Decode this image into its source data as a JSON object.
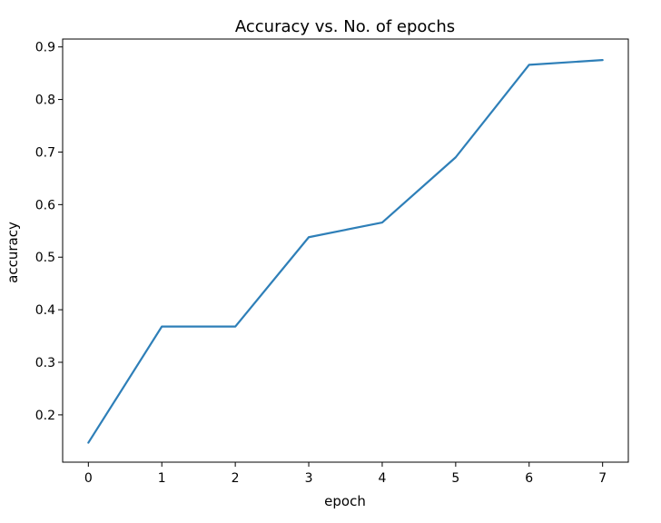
{
  "chart_data": {
    "type": "line",
    "title": "Accuracy vs. No. of epochs",
    "xlabel": "epoch",
    "ylabel": "accuracy",
    "x": [
      0,
      1,
      2,
      3,
      4,
      5,
      6,
      7
    ],
    "series": [
      {
        "values": [
          0.147,
          0.368,
          0.368,
          0.538,
          0.566,
          0.69,
          0.866,
          0.875
        ],
        "color": "#2e7fb8"
      }
    ],
    "xlim": [
      -0.35,
      7.35
    ],
    "ylim": [
      0.11,
      0.915
    ],
    "xticks": [
      "0",
      "1",
      "2",
      "3",
      "4",
      "5",
      "6",
      "7"
    ],
    "yticks": [
      "0.2",
      "0.3",
      "0.4",
      "0.5",
      "0.6",
      "0.7",
      "0.8",
      "0.9"
    ],
    "grid": false,
    "legend": "none"
  }
}
